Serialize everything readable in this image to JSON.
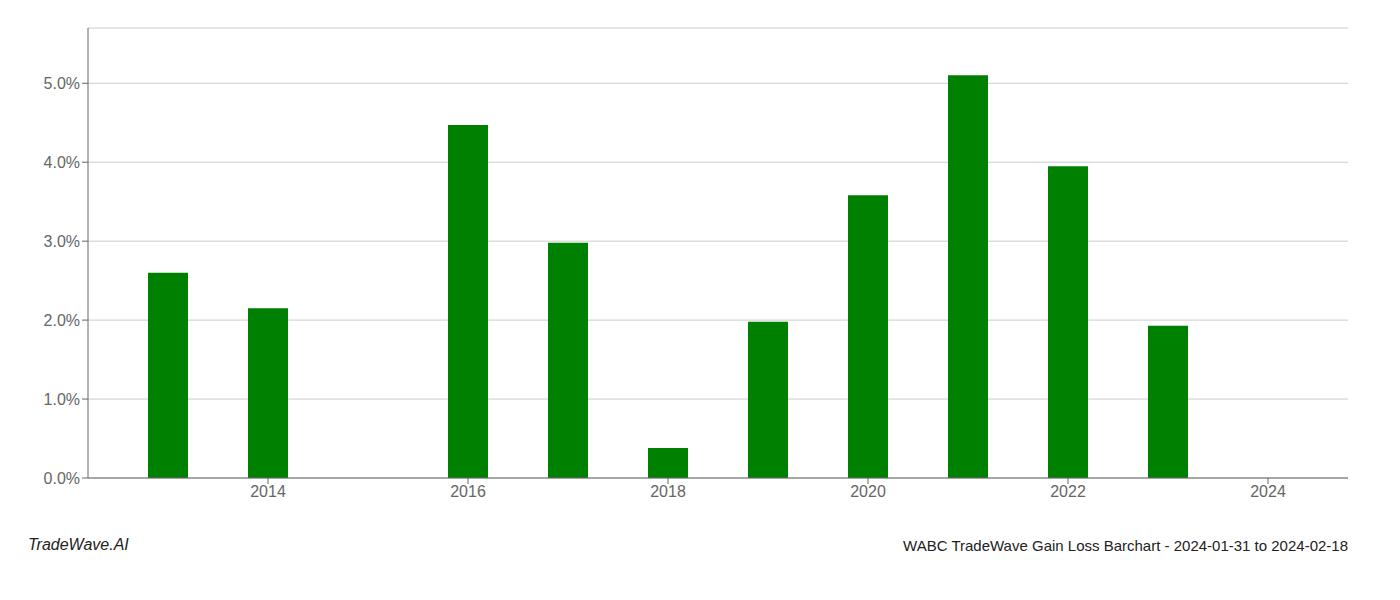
{
  "chart_data": {
    "type": "bar",
    "title": "WABC TradeWave Gain Loss Barchart - 2024-01-31 to 2024-02-18",
    "annotations": [
      "TradeWave.AI"
    ],
    "x": [
      2013,
      2014,
      2016,
      2017,
      2018,
      2019,
      2020,
      2021,
      2022,
      2023
    ],
    "values": [
      0.026,
      0.0215,
      0.0447,
      0.0298,
      0.0038,
      0.0198,
      0.0358,
      0.051,
      0.0395,
      0.0193
    ],
    "color": "#008000",
    "xlim": [
      2012.2,
      2024.8
    ],
    "xticks": [
      2014,
      2016,
      2018,
      2020,
      2022,
      2024
    ],
    "ylim": [
      0,
      0.057
    ],
    "yticks": [
      {
        "value": 0.0,
        "label": "0.0%"
      },
      {
        "value": 0.01,
        "label": "1.0%"
      },
      {
        "value": 0.02,
        "label": "2.0%"
      },
      {
        "value": 0.03,
        "label": "3.0%"
      },
      {
        "value": 0.04,
        "label": "4.0%"
      },
      {
        "value": 0.05,
        "label": "5.0%"
      }
    ],
    "grid": true
  }
}
